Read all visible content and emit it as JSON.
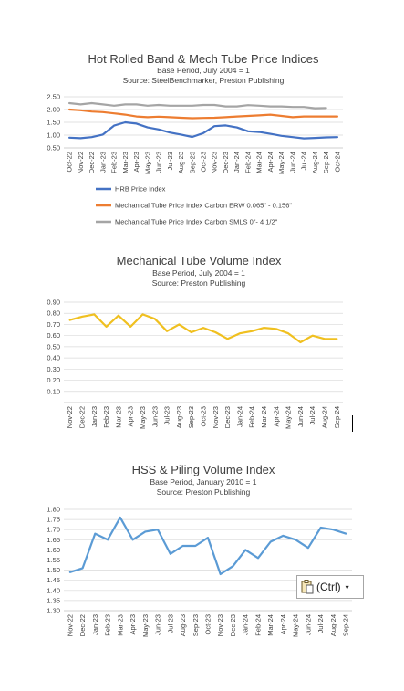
{
  "chart_data": [
    {
      "type": "line",
      "title": "Hot Rolled Band & Mech Tube Price Indices",
      "subtitle_lines": [
        "Base Period, July 2004 = 1",
        "Source:  SteelBenchmarker, Preston Publishing"
      ],
      "categories": [
        "Oct-22",
        "Nov-22",
        "Dec-22",
        "Jan-23",
        "Feb-23",
        "Mar-23",
        "Apr-23",
        "May-23",
        "Jun-23",
        "Jul-23",
        "Aug-23",
        "Sep-23",
        "Oct-23",
        "Nov-23",
        "Dec-23",
        "Jan-24",
        "Feb-24",
        "Mar-24",
        "Apr-24",
        "May-24",
        "Jun-24",
        "Jul-24",
        "Aug-24",
        "Sep-24",
        "Oct-24"
      ],
      "tick_labels": [
        "Oct-22",
        "Nov-22",
        "Dec-22",
        "Jan-23",
        "Feb-23",
        "Mar-23",
        "Apr-23",
        "May-23",
        "Jun-23",
        "Jul-23",
        "Aug-23",
        "Sep-23",
        "Oct-23",
        "Nov-23",
        "Dec-23",
        "Jan-24",
        "Feb-24",
        "Mar-24",
        "Apr-24",
        "May-24",
        "Jun-24",
        "Jul-24",
        "Aug-24",
        "Sep-24",
        "Oct-24"
      ],
      "ylim": [
        0.5,
        2.5
      ],
      "yticks": [
        "2.50",
        "2.00",
        "1.50",
        "1.00",
        "0.50"
      ],
      "ytick_values": [
        2.5,
        2.0,
        1.5,
        1.0,
        0.5
      ],
      "grid": true,
      "legend_position": "bottom",
      "series": [
        {
          "name": "HRB Price Index",
          "color": "#4472c4",
          "values": [
            0.9,
            0.88,
            0.92,
            1.02,
            1.37,
            1.5,
            1.45,
            1.3,
            1.22,
            1.1,
            1.02,
            0.93,
            1.08,
            1.35,
            1.38,
            1.3,
            1.15,
            1.12,
            1.05,
            0.97,
            0.92,
            0.87,
            0.89,
            0.91,
            0.92
          ]
        },
        {
          "name": "Mechanical Tube Price Index Carbon ERW 0.065\" - 0.156\"",
          "color": "#ed7d31",
          "values": [
            2.0,
            1.97,
            1.92,
            1.9,
            1.85,
            1.8,
            1.73,
            1.7,
            1.72,
            1.7,
            1.68,
            1.66,
            1.67,
            1.68,
            1.7,
            1.73,
            1.75,
            1.77,
            1.8,
            1.75,
            1.7,
            1.73,
            1.73,
            1.73,
            1.73
          ]
        },
        {
          "name": "Mechanical Tube Price Index Carbon SMLS 0\"- 4 1/2\"",
          "color": "#a5a5a5",
          "values": [
            2.25,
            2.2,
            2.25,
            2.2,
            2.15,
            2.2,
            2.2,
            2.15,
            2.18,
            2.15,
            2.15,
            2.15,
            2.18,
            2.18,
            2.12,
            2.12,
            2.17,
            2.15,
            2.12,
            2.12,
            2.1,
            2.1,
            2.05,
            2.06,
            null
          ]
        }
      ]
    },
    {
      "type": "line",
      "title": "Mechanical Tube Volume Index",
      "subtitle_lines": [
        "Base Period, July 2004 = 1",
        "Source:  Preston Publishing"
      ],
      "categories": [
        "Nov-22",
        "Dec-22",
        "Jan-23",
        "Feb-23",
        "Mar-23",
        "Apr-23",
        "May-23",
        "Jun-23",
        "Jul-23",
        "Aug-23",
        "Sep-23",
        "Oct-23",
        "Nov-23",
        "Dec-23",
        "Jan-24",
        "Feb-24",
        "Mar-24",
        "Apr-24",
        "May-24",
        "Jun-24",
        "Jul-24",
        "Aug-24",
        "Sep-24"
      ],
      "tick_labels": [
        "Nov-22",
        "Dec-22",
        "Jan-23",
        "Feb-23",
        "Mar-23",
        "Apr-23",
        "May-23",
        "Jun-23",
        "Jul-23",
        "Aug-23",
        "Sep-23",
        "Oct-23",
        "Nov-23",
        "Dec-23",
        "Jan-24",
        "Feb-24",
        "Mar-24",
        "Apr-24",
        "May-24",
        "Jun-24",
        "Jul-24",
        "Aug-24",
        "Sep-24"
      ],
      "ylim": [
        0,
        0.9
      ],
      "yticks": [
        "0.90",
        "0.80",
        "0.70",
        "0.60",
        "0.50",
        "0.40",
        "0.30",
        "0.20",
        "0.10",
        "-"
      ],
      "ytick_values": [
        0.9,
        0.8,
        0.7,
        0.6,
        0.5,
        0.4,
        0.3,
        0.2,
        0.1,
        0.0
      ],
      "grid": true,
      "series": [
        {
          "color": "#f0c020",
          "values": [
            0.74,
            0.77,
            0.79,
            0.68,
            0.78,
            0.68,
            0.79,
            0.75,
            0.64,
            0.7,
            0.63,
            0.67,
            0.63,
            0.57,
            0.62,
            0.64,
            0.67,
            0.66,
            0.62,
            0.54,
            0.6,
            0.57,
            0.57
          ]
        }
      ]
    },
    {
      "type": "line",
      "title": "HSS & Piling Volume Index",
      "subtitle_lines": [
        "Base Period, January 2010 = 1",
        "Source:  Preston Publishing"
      ],
      "categories": [
        "Nov-22",
        "Dec-22",
        "Jan-23",
        "Feb-23",
        "Mar-23",
        "Apr-23",
        "May-23",
        "Jun-23",
        "Jul-23",
        "Aug-23",
        "Sep-23",
        "Oct-23",
        "Nov-23",
        "Dec-23",
        "Jan-24",
        "Feb-24",
        "Mar-24",
        "Apr-24",
        "May-24",
        "Jun-24",
        "Jul-24",
        "Aug-24",
        "Sep-24"
      ],
      "tick_labels": [
        "Nov-22",
        "Dec-22",
        "Jan-23",
        "Feb-23",
        "Mar-23",
        "Apr-23",
        "May-23",
        "Jun-23",
        "Jul-23",
        "Aug-23",
        "Sep-23",
        "Oct-23",
        "Nov-23",
        "Dec-23",
        "Jan-24",
        "Feb-24",
        "Mar-24",
        "Apr-24",
        "May-24",
        "Jun-24",
        "Jul-24",
        "Aug-24",
        "Sep-24"
      ],
      "ylim": [
        1.3,
        1.8
      ],
      "yticks": [
        "1.80",
        "1.75",
        "1.70",
        "1.65",
        "1.60",
        "1.55",
        "1.50",
        "1.45",
        "1.40",
        "1.35",
        "1.30"
      ],
      "ytick_values": [
        1.8,
        1.75,
        1.7,
        1.65,
        1.6,
        1.55,
        1.5,
        1.45,
        1.4,
        1.35,
        1.3
      ],
      "grid": true,
      "series": [
        {
          "color": "#5b9bd5",
          "values": [
            1.49,
            1.51,
            1.68,
            1.65,
            1.76,
            1.65,
            1.69,
            1.7,
            1.58,
            1.62,
            1.62,
            1.66,
            1.48,
            1.52,
            1.6,
            1.56,
            1.64,
            1.67,
            1.65,
            1.61,
            1.71,
            1.7,
            1.68
          ]
        }
      ]
    }
  ],
  "paste_options": {
    "label": "(Ctrl)",
    "icon": "clipboard-icon",
    "caret": "▾"
  }
}
